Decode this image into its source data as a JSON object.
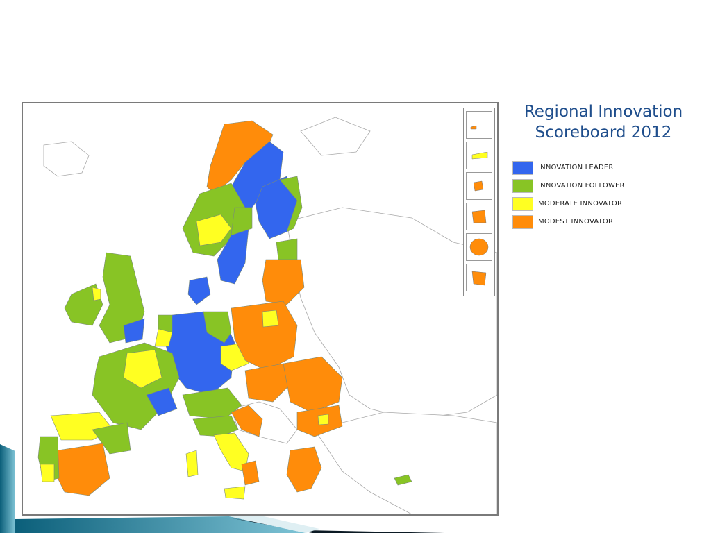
{
  "slide": {
    "title_line1": "Regional Innovation",
    "title_line2": "Scoreboard 2012"
  },
  "legend": {
    "items": [
      {
        "label": "INNOVATION LEADER",
        "color": "#3366ee"
      },
      {
        "label": "INNOVATION FOLLOWER",
        "color": "#88c425"
      },
      {
        "label": "MODERATE INNOVATOR",
        "color": "#ffff22"
      },
      {
        "label": "MODEST INNOVATOR",
        "color": "#ff8c0a"
      }
    ]
  },
  "colors": {
    "leader": "#3366ee",
    "follower": "#88c425",
    "moderate": "#ffff22",
    "modest": "#ff8c0a",
    "non_eu_fill": "#ffffff",
    "outline": "#9a9a9a",
    "title": "#1f4e8c"
  }
}
